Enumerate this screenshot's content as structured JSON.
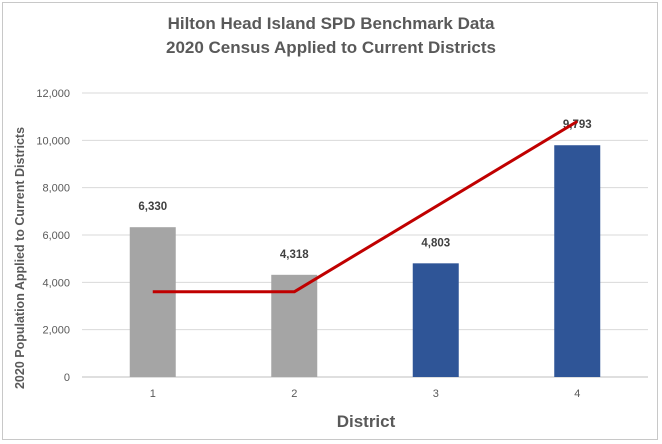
{
  "chart_data": {
    "type": "bar",
    "title_line1": "Hilton Head Island SPD Benchmark Data",
    "title_line2": "2020 Census Applied to Current Districts",
    "xlabel": "District",
    "ylabel": "2020 Population Applied to Current Districts",
    "categories": [
      "1",
      "2",
      "3",
      "4"
    ],
    "ylim": [
      0,
      12000
    ],
    "yticks": [
      0,
      2000,
      4000,
      6000,
      8000,
      10000,
      12000
    ],
    "ytick_labels": [
      "0",
      "2,000",
      "4,000",
      "6,000",
      "8,000",
      "10,000",
      "12,000"
    ],
    "grid": true,
    "series": [
      {
        "values": [
          6330,
          4318,
          4803,
          9793
        ],
        "data_labels": [
          "6,330",
          "4,318",
          "4,803",
          "9,793"
        ],
        "colors": [
          "#a5a5a5",
          "#a5a5a5",
          "#2f5597",
          "#2f5597"
        ]
      }
    ],
    "line": {
      "color": "#c00000",
      "points": [
        {
          "x": "1",
          "y": 3600
        },
        {
          "x": "2",
          "y": 3600
        },
        {
          "x": "4",
          "y": 10800
        }
      ]
    }
  }
}
